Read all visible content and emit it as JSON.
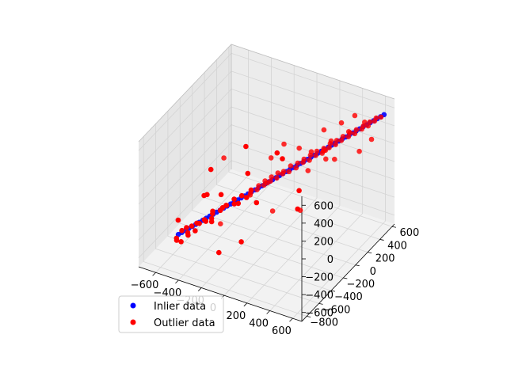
{
  "chart_data": {
    "type": "scatter",
    "projection": "3d",
    "grid": true,
    "axes": {
      "x": {
        "ticks": [
          -600,
          -400,
          -200,
          0,
          200,
          400,
          600
        ],
        "tick_labels": [
          "−600",
          "−400",
          "−200",
          "0",
          "200",
          "400",
          "600"
        ],
        "lim": [
          -750,
          680
        ]
      },
      "y": {
        "ticks": [
          -800,
          -600,
          -400,
          -200,
          0,
          200,
          400,
          600
        ],
        "tick_labels": [
          "−800",
          "−600",
          "−400",
          "−200",
          "0",
          "200",
          "400",
          "600"
        ],
        "lim": [
          -880,
          640
        ]
      },
      "z": {
        "ticks": [
          -600,
          -400,
          -200,
          0,
          200,
          400,
          600
        ],
        "tick_labels": [
          "−600",
          "−400",
          "−200",
          "0",
          "200",
          "400",
          "600"
        ],
        "lim": [
          -700,
          700
        ]
      }
    },
    "series": [
      {
        "name": "Inlier data",
        "color": "#0000ff",
        "marker": "circle",
        "line": {
          "t_min": -600,
          "t_max": 640,
          "count": 60,
          "y_slope": 0.85,
          "z_slope": 0.9
        }
      },
      {
        "name": "Outlier data",
        "color": "#ff0000",
        "marker": "circle",
        "points": [
          [
            -620,
            -500,
            -620
          ],
          [
            -600,
            -540,
            -560
          ],
          [
            -590,
            -470,
            -520
          ],
          [
            -570,
            -520,
            -600
          ],
          [
            -560,
            -430,
            -560
          ],
          [
            -550,
            -470,
            -470
          ],
          [
            -530,
            -420,
            -480
          ],
          [
            -520,
            -500,
            -520
          ],
          [
            -500,
            -420,
            -520
          ],
          [
            -480,
            -390,
            -450
          ],
          [
            -470,
            -450,
            -400
          ],
          [
            -450,
            -340,
            -450
          ],
          [
            -430,
            -400,
            -380
          ],
          [
            -420,
            -300,
            -470
          ],
          [
            -400,
            -320,
            -330
          ],
          [
            -380,
            -360,
            -320
          ],
          [
            -360,
            -270,
            -340
          ],
          [
            -340,
            -270,
            -300
          ],
          [
            -320,
            -250,
            -280
          ],
          [
            -300,
            -280,
            -250
          ],
          [
            -280,
            -190,
            -290
          ],
          [
            -260,
            -230,
            -200
          ],
          [
            -240,
            -200,
            -260
          ],
          [
            -220,
            -180,
            -180
          ],
          [
            -200,
            -140,
            -220
          ],
          [
            -180,
            -110,
            -180
          ],
          [
            -160,
            -140,
            -120
          ],
          [
            -140,
            -80,
            -150
          ],
          [
            -120,
            -90,
            -90
          ],
          [
            -100,
            -40,
            -110
          ],
          [
            -80,
            -60,
            -40
          ],
          [
            -60,
            -10,
            -70
          ],
          [
            -40,
            -30,
            0
          ],
          [
            -20,
            20,
            -40
          ],
          [
            0,
            0,
            40
          ],
          [
            20,
            40,
            10
          ],
          [
            40,
            20,
            60
          ],
          [
            60,
            70,
            30
          ],
          [
            80,
            60,
            110
          ],
          [
            100,
            110,
            60
          ],
          [
            120,
            100,
            130
          ],
          [
            140,
            150,
            110
          ],
          [
            160,
            130,
            170
          ],
          [
            180,
            180,
            130
          ],
          [
            200,
            160,
            210
          ],
          [
            220,
            210,
            180
          ],
          [
            240,
            190,
            250
          ],
          [
            260,
            240,
            200
          ],
          [
            280,
            230,
            270
          ],
          [
            300,
            280,
            250
          ],
          [
            320,
            260,
            320
          ],
          [
            340,
            310,
            280
          ],
          [
            360,
            290,
            350
          ],
          [
            380,
            330,
            330
          ],
          [
            400,
            320,
            390
          ],
          [
            420,
            370,
            360
          ],
          [
            440,
            360,
            420
          ],
          [
            460,
            400,
            390
          ],
          [
            480,
            390,
            450
          ],
          [
            500,
            440,
            430
          ],
          [
            520,
            430,
            480
          ],
          [
            540,
            470,
            460
          ],
          [
            560,
            460,
            520
          ],
          [
            580,
            500,
            510
          ],
          [
            600,
            490,
            560
          ],
          [
            620,
            530,
            550
          ],
          [
            -500,
            -700,
            -200
          ],
          [
            -450,
            -100,
            -650
          ],
          [
            -350,
            200,
            -500
          ],
          [
            -300,
            -600,
            100
          ],
          [
            -250,
            -500,
            -600
          ],
          [
            -200,
            200,
            -300
          ],
          [
            -150,
            -650,
            200
          ],
          [
            -100,
            100,
            -500
          ],
          [
            -50,
            -400,
            300
          ],
          [
            0,
            -600,
            -300
          ],
          [
            50,
            400,
            -200
          ],
          [
            100,
            -200,
            450
          ],
          [
            150,
            500,
            0
          ],
          [
            200,
            -300,
            500
          ],
          [
            250,
            -100,
            -200
          ],
          [
            300,
            600,
            200
          ],
          [
            350,
            100,
            600
          ],
          [
            400,
            -400,
            300
          ],
          [
            450,
            200,
            650
          ],
          [
            500,
            600,
            200
          ],
          [
            550,
            -100,
            500
          ],
          [
            600,
            300,
            650
          ],
          [
            -420,
            -100,
            100
          ],
          [
            -320,
            -500,
            300
          ],
          [
            -220,
            300,
            -100
          ],
          [
            -120,
            -300,
            500
          ],
          [
            80,
            -500,
            100
          ],
          [
            180,
            450,
            -50
          ],
          [
            280,
            -200,
            -100
          ],
          [
            380,
            550,
            450
          ],
          [
            480,
            -150,
            600
          ],
          [
            580,
            250,
            350
          ],
          [
            -540,
            -200,
            -300
          ],
          [
            -260,
            -600,
            -150
          ],
          [
            160,
            50,
            350
          ],
          [
            320,
            -50,
            450
          ],
          [
            440,
            50,
            550
          ],
          [
            -80,
            250,
            150
          ]
        ]
      }
    ],
    "legend": {
      "placement": "lower-left",
      "entries": [
        "Inlier data",
        "Outlier data"
      ]
    }
  },
  "legend": {
    "inlier_label": "Inlier data",
    "outlier_label": "Outlier data"
  }
}
